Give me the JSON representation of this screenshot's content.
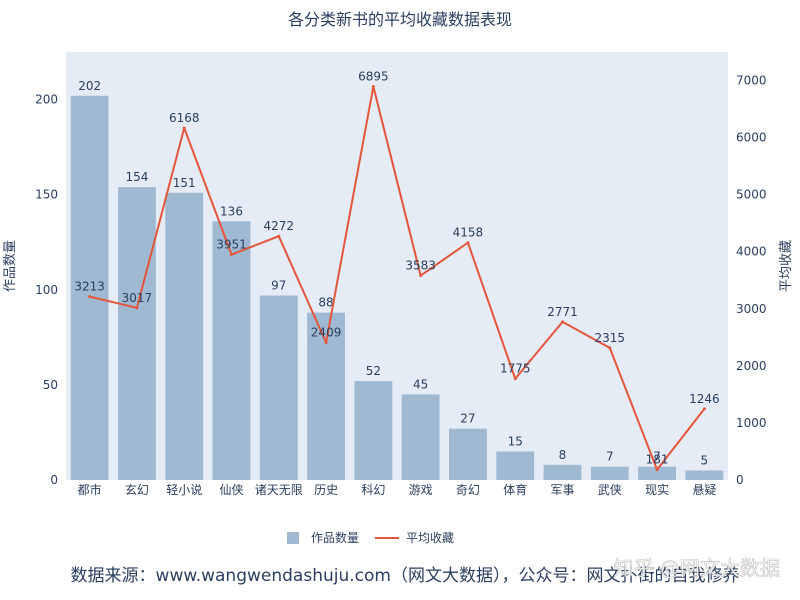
{
  "chart_data": {
    "type": "bar",
    "title": "各分类新书的平均收藏数据表现",
    "categories": [
      "都市",
      "玄幻",
      "轻小说",
      "仙侠",
      "诸天无限",
      "历史",
      "科幻",
      "游戏",
      "奇幻",
      "体育",
      "军事",
      "武侠",
      "现实",
      "悬疑"
    ],
    "series": [
      {
        "name": "作品数量",
        "type": "bar",
        "axis": "left",
        "color": "#a0b9d2",
        "values": [
          202,
          154,
          151,
          136,
          97,
          88,
          52,
          45,
          27,
          15,
          8,
          7,
          7,
          5
        ]
      },
      {
        "name": "平均收藏",
        "type": "line",
        "axis": "right",
        "color": "#e4553a",
        "values": [
          3213,
          3017,
          6168,
          3951,
          4272,
          2409,
          6895,
          3583,
          4158,
          1775,
          2771,
          2315,
          181,
          1246
        ]
      }
    ],
    "ylabel": "作品数量",
    "y2label": "平均收藏",
    "ylim": [
      0,
      225
    ],
    "y2lim": [
      0,
      7500
    ],
    "yticks": [
      0,
      50,
      100,
      150,
      200
    ],
    "y2ticks": [
      0,
      1000,
      2000,
      3000,
      4000,
      5000,
      6000,
      7000
    ],
    "legend_position": "bottom-center",
    "grid": false,
    "plot_background": "#e5ecf6"
  },
  "footer": {
    "source_text": "数据来源：www.wangwendashuju.com（网文大数据），公众号：网文扑街的自我修养"
  },
  "watermark": {
    "text": "知乎 @网文大数据"
  }
}
